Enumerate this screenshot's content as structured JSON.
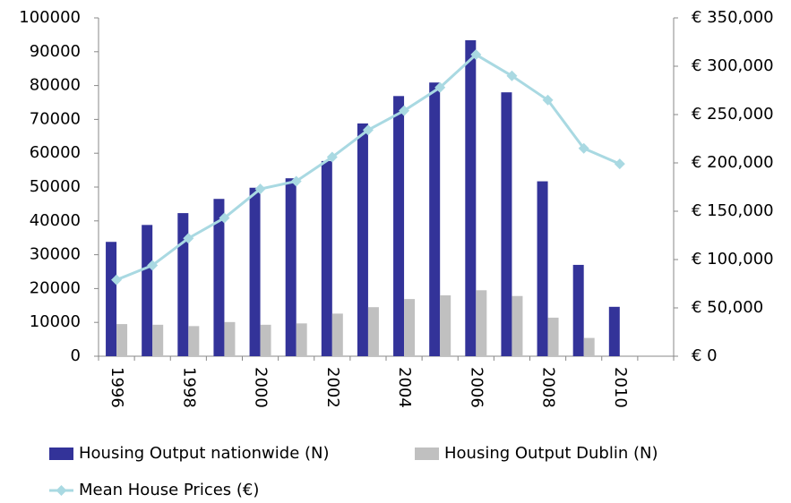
{
  "chart_data": {
    "type": "bar",
    "categories": [
      "1996",
      null,
      "1998",
      null,
      "2000",
      null,
      "2002",
      null,
      "2004",
      null,
      "2006",
      null,
      "2008",
      null,
      "2010",
      null
    ],
    "series": [
      {
        "name": "Housing Output nationwide (N)",
        "color": "#333399",
        "values": [
          33800,
          38800,
          42300,
          46500,
          49800,
          52600,
          57700,
          68800,
          76900,
          80900,
          93400,
          78000,
          51700,
          27000,
          14600,
          null
        ]
      },
      {
        "name": "Housing Output Dublin (N)",
        "color": "#c0c0c0",
        "values": [
          9500,
          9300,
          8900,
          10100,
          9300,
          9700,
          12600,
          14500,
          16900,
          18000,
          19500,
          17800,
          11400,
          5400,
          null,
          null
        ]
      },
      {
        "name": "Mean House Prices (€)",
        "type": "line",
        "axis": "y2",
        "color": "#a9d9e2",
        "values": [
          79000,
          94000,
          122000,
          143000,
          173000,
          181000,
          206000,
          234000,
          254000,
          278000,
          312000,
          290000,
          265000,
          215000,
          199000,
          null
        ]
      }
    ],
    "ylim": [
      0,
      100000
    ],
    "yticks": [
      0,
      10000,
      20000,
      30000,
      40000,
      50000,
      60000,
      70000,
      80000,
      90000,
      100000
    ],
    "y2lim": [
      0,
      350000
    ],
    "y2ticks": [
      {
        "value": 0,
        "label": "€ 0"
      },
      {
        "value": 50000,
        "label": "€ 50,000"
      },
      {
        "value": 100000,
        "label": "€ 100,000"
      },
      {
        "value": 150000,
        "label": "€ 150,000"
      },
      {
        "value": 200000,
        "label": "€ 200,000"
      },
      {
        "value": 250000,
        "label": "€ 250,000"
      },
      {
        "value": 300000,
        "label": "€ 300,000"
      },
      {
        "value": 350000,
        "label": "€ 350,000"
      }
    ],
    "grid": false
  }
}
